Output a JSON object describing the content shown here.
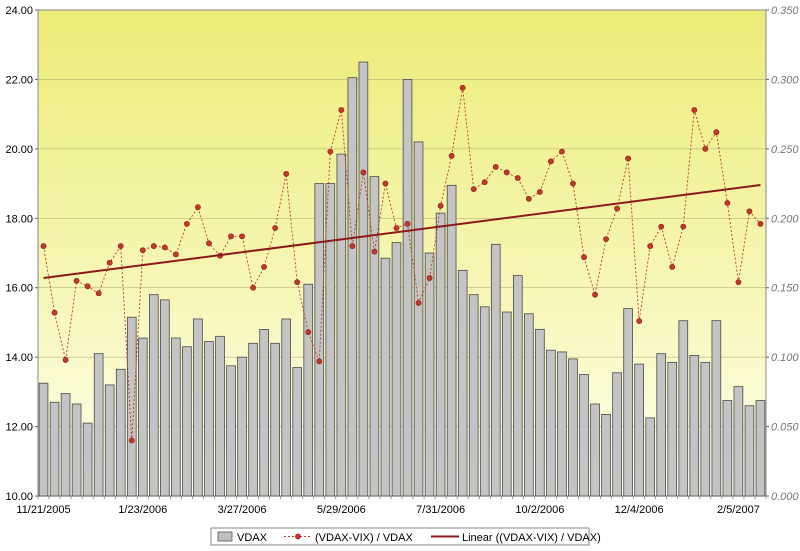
{
  "chart_data": {
    "type": "bar",
    "title": "",
    "xlabel": "",
    "ylabel": "",
    "ylim": [
      10,
      24
    ],
    "y2lim": [
      0,
      0.35
    ],
    "yticks": [
      "10.00",
      "12.00",
      "14.00",
      "16.00",
      "18.00",
      "20.00",
      "22.00",
      "24.00"
    ],
    "y2ticks": [
      "0.000",
      "0.050",
      "0.100",
      "0.150",
      "0.200",
      "0.250",
      "0.300",
      "0.350"
    ],
    "xticks": [
      {
        "label": "11/21/2005",
        "index": 0
      },
      {
        "label": "1/23/2006",
        "index": 9
      },
      {
        "label": "3/27/2006",
        "index": 18
      },
      {
        "label": "5/29/2006",
        "index": 27
      },
      {
        "label": "7/31/2006",
        "index": 36
      },
      {
        "label": "10/2/2006",
        "index": 45
      },
      {
        "label": "12/4/2006",
        "index": 54
      },
      {
        "label": "2/5/2007",
        "index": 63
      }
    ],
    "grid": true,
    "legend_position": "bottom",
    "series": [
      {
        "name": "VDAX",
        "kind": "bar",
        "axis": "left",
        "color": "#c0c0c0",
        "values": [
          13.25,
          12.7,
          12.95,
          12.65,
          12.1,
          14.1,
          13.2,
          13.65,
          15.15,
          14.55,
          15.8,
          15.65,
          14.55,
          14.3,
          15.1,
          14.45,
          14.6,
          13.75,
          14.0,
          14.4,
          14.8,
          14.4,
          15.1,
          13.7,
          16.1,
          19.0,
          19.0,
          19.85,
          22.05,
          22.5,
          19.2,
          16.85,
          17.3,
          22.0,
          20.2,
          17.0,
          18.15,
          18.95,
          16.5,
          15.8,
          15.45,
          17.25,
          15.3,
          16.35,
          15.25,
          14.8,
          14.2,
          14.15,
          13.95,
          13.5,
          12.65,
          12.35,
          13.55,
          15.4,
          13.8,
          12.25,
          14.1,
          13.85,
          15.05,
          14.05,
          13.85,
          15.05,
          12.75,
          13.15,
          12.6,
          12.75
        ]
      },
      {
        "name": "(VDAX-VIX) / VDAX",
        "kind": "line",
        "axis": "right",
        "color": "#c0392b",
        "values": [
          0.18,
          0.132,
          0.098,
          0.155,
          0.151,
          0.146,
          0.168,
          0.18,
          0.04,
          0.177,
          0.18,
          0.179,
          0.174,
          0.196,
          0.208,
          0.182,
          0.173,
          0.187,
          0.187,
          0.15,
          0.165,
          0.193,
          0.232,
          0.154,
          0.118,
          0.097,
          0.248,
          0.278,
          0.18,
          0.233,
          0.176,
          0.225,
          0.193,
          0.196,
          0.139,
          0.157,
          0.209,
          0.245,
          0.294,
          0.221,
          0.226,
          0.237,
          0.233,
          0.229,
          0.214,
          0.219,
          0.241,
          0.248,
          0.225,
          0.172,
          0.145,
          0.185,
          0.207,
          0.243,
          0.126,
          0.18,
          0.194,
          0.165,
          0.194,
          0.278,
          0.25,
          0.262,
          0.211,
          0.154,
          0.205,
          0.196
        ]
      },
      {
        "name": "Linear ((VDAX-VIX) / VDAX)",
        "kind": "trendline",
        "axis": "right",
        "color": "#8b1a1a",
        "values": [
          0.157,
          0.224
        ]
      }
    ]
  }
}
